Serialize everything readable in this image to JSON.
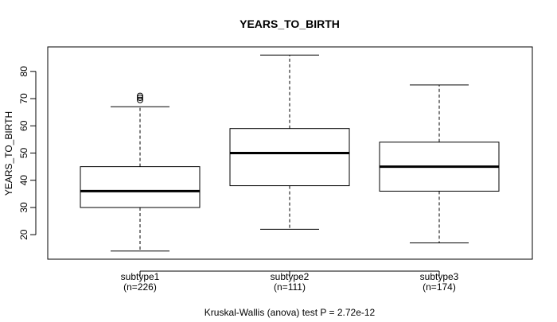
{
  "chart_data": {
    "type": "boxplot",
    "title": "YEARS_TO_BIRTH",
    "ylabel": "YEARS_TO_BIRTH",
    "xlabel": "",
    "ylim": [
      11,
      89
    ],
    "yticks": [
      20,
      30,
      40,
      50,
      60,
      70,
      80
    ],
    "footer": "Kruskal-Wallis (anova) test P = 2.72e-12",
    "grid": false,
    "groups": [
      {
        "label": "subtype1",
        "n_label": "(n=226)",
        "whisker_low": 14,
        "q1": 30,
        "median": 36,
        "q3": 45,
        "whisker_high": 67,
        "outliers": [
          69.5,
          70.3,
          71
        ]
      },
      {
        "label": "subtype2",
        "n_label": "(n=111)",
        "whisker_low": 22,
        "q1": 38,
        "median": 50,
        "q3": 59,
        "whisker_high": 86,
        "outliers": []
      },
      {
        "label": "subtype3",
        "n_label": "(n=174)",
        "whisker_low": 17,
        "q1": 36,
        "median": 45,
        "q3": 54,
        "whisker_high": 75,
        "outliers": []
      }
    ]
  }
}
